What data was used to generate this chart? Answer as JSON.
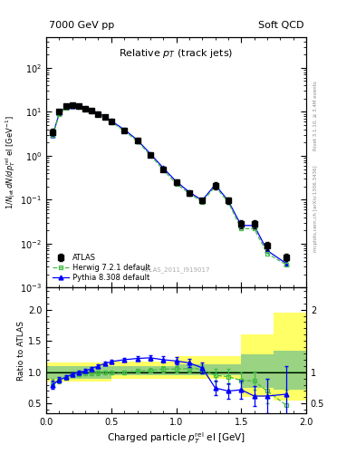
{
  "title_left": "7000 GeV pp",
  "title_right": "Soft QCD",
  "main_title": "Relative $p_T$ (track jets)",
  "xlabel": "Charged particle $p_T^{\\rm rel}$ el [GeV]",
  "ylabel_main": "$1/N_{\\rm jet}\\,dN/dp_T^{\\rm rel}$ el [GeV$^{-1}$]",
  "ylabel_ratio": "Ratio to ATLAS",
  "right_label_top": "Rivet 3.1.10, ≥ 3.4M events",
  "right_label_bot": "mcplots.cern.ch [arXiv:1306.3436]",
  "watermark": "ATLAS_2011_I919017",
  "xlim": [
    0,
    2.0
  ],
  "ylim_main": [
    0.001,
    500
  ],
  "ylim_ratio": [
    0.35,
    2.35
  ],
  "atlas_x": [
    0.05,
    0.1,
    0.15,
    0.2,
    0.25,
    0.3,
    0.35,
    0.4,
    0.45,
    0.5,
    0.6,
    0.7,
    0.8,
    0.9,
    1.0,
    1.1,
    1.2,
    1.3,
    1.4,
    1.5,
    1.6,
    1.7,
    1.85
  ],
  "atlas_y": [
    3.5,
    10.0,
    13.5,
    14.0,
    13.5,
    12.0,
    10.5,
    9.0,
    7.5,
    6.0,
    3.8,
    2.2,
    1.05,
    0.5,
    0.25,
    0.14,
    0.095,
    0.21,
    0.095,
    0.028,
    0.028,
    0.009,
    0.005
  ],
  "atlas_yerr": [
    0.6,
    0.9,
    1.0,
    1.0,
    1.0,
    0.9,
    0.8,
    0.7,
    0.6,
    0.5,
    0.35,
    0.22,
    0.11,
    0.05,
    0.03,
    0.016,
    0.012,
    0.04,
    0.015,
    0.006,
    0.006,
    0.002,
    0.001
  ],
  "herwig_x": [
    0.05,
    0.1,
    0.15,
    0.2,
    0.25,
    0.3,
    0.35,
    0.4,
    0.45,
    0.5,
    0.6,
    0.7,
    0.8,
    0.9,
    1.0,
    1.1,
    1.2,
    1.3,
    1.4,
    1.5,
    1.6,
    1.7,
    1.85
  ],
  "herwig_y": [
    2.9,
    8.8,
    12.4,
    13.3,
    13.0,
    11.6,
    10.2,
    8.8,
    7.4,
    5.9,
    3.7,
    2.15,
    1.04,
    0.48,
    0.23,
    0.14,
    0.09,
    0.2,
    0.088,
    0.022,
    0.022,
    0.006,
    0.0033
  ],
  "pythia_x": [
    0.05,
    0.1,
    0.15,
    0.2,
    0.25,
    0.3,
    0.35,
    0.4,
    0.45,
    0.5,
    0.6,
    0.7,
    0.8,
    0.9,
    1.0,
    1.1,
    1.2,
    1.3,
    1.4,
    1.5,
    1.6,
    1.7,
    1.85
  ],
  "pythia_y": [
    3.0,
    9.2,
    12.7,
    13.8,
    13.5,
    12.2,
    10.8,
    9.4,
    7.8,
    6.2,
    3.95,
    2.3,
    1.12,
    0.53,
    0.26,
    0.15,
    0.097,
    0.22,
    0.095,
    0.026,
    0.026,
    0.007,
    0.0035
  ],
  "herwig_ratio": [
    0.83,
    0.87,
    0.91,
    0.95,
    0.97,
    0.98,
    0.98,
    0.99,
    1.0,
    1.0,
    1.0,
    1.02,
    1.03,
    1.05,
    1.05,
    1.06,
    1.05,
    0.95,
    0.93,
    0.87,
    0.86,
    0.7,
    0.47
  ],
  "herwig_ratio_err": [
    0.06,
    0.04,
    0.03,
    0.03,
    0.03,
    0.03,
    0.03,
    0.03,
    0.03,
    0.03,
    0.03,
    0.03,
    0.04,
    0.05,
    0.05,
    0.06,
    0.07,
    0.1,
    0.12,
    0.14,
    0.14,
    0.2,
    0.25
  ],
  "pythia_ratio": [
    0.8,
    0.88,
    0.92,
    0.97,
    1.0,
    1.02,
    1.06,
    1.1,
    1.14,
    1.17,
    1.2,
    1.22,
    1.23,
    1.2,
    1.18,
    1.15,
    1.07,
    0.75,
    0.7,
    0.72,
    0.62,
    0.62,
    0.65
  ],
  "pythia_ratio_err": [
    0.06,
    0.04,
    0.03,
    0.03,
    0.03,
    0.03,
    0.03,
    0.03,
    0.03,
    0.03,
    0.03,
    0.03,
    0.04,
    0.05,
    0.06,
    0.07,
    0.09,
    0.12,
    0.13,
    0.15,
    0.16,
    0.28,
    0.45
  ],
  "band_edges": [
    0.0,
    0.5,
    1.0,
    1.5,
    1.75,
    2.0
  ],
  "yellow_low": [
    0.85,
    0.9,
    0.9,
    0.6,
    0.55,
    0.55
  ],
  "yellow_high": [
    1.15,
    1.17,
    1.25,
    1.6,
    1.95,
    1.95
  ],
  "green_low": [
    0.9,
    0.95,
    0.95,
    0.75,
    0.72,
    0.72
  ],
  "green_high": [
    1.1,
    1.1,
    1.12,
    1.28,
    1.35,
    1.35
  ],
  "atlas_color": "black",
  "herwig_color": "#44bb44",
  "pythia_color": "blue",
  "bg_color": "white"
}
